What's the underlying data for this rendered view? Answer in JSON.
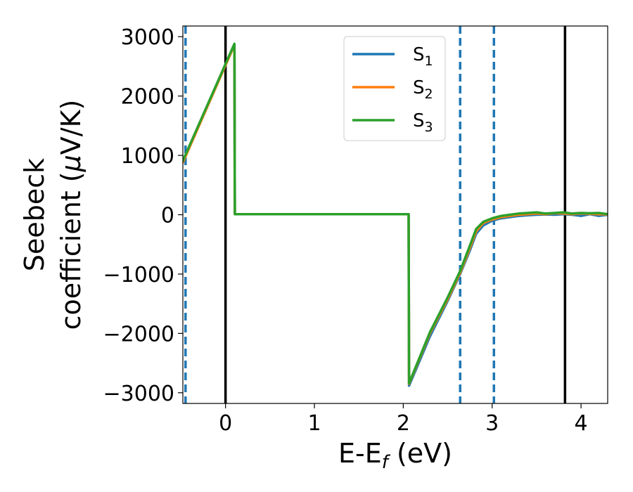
{
  "chart_data": {
    "type": "line",
    "xlabel": {
      "main": "E-E",
      "sub": "f",
      "tail": " (eV)"
    },
    "ylabel": {
      "line1": "Seebeck",
      "line2_pre": "coefficient  (",
      "mu": "μ",
      "line2_post": "V/K)"
    },
    "xlim": [
      -0.48,
      4.3
    ],
    "ylim": [
      -3180,
      3180
    ],
    "xticks": [
      0,
      1,
      2,
      3,
      4
    ],
    "yticks": [
      -3000,
      -2000,
      -1000,
      0,
      1000,
      2000,
      3000
    ],
    "xtick_labels": [
      "0",
      "1",
      "2",
      "3",
      "4"
    ],
    "ytick_labels": [
      "−3000",
      "−2000",
      "−1000",
      "0",
      "1000",
      "2000",
      "3000"
    ],
    "vlines_solid": [
      0,
      3.82
    ],
    "vlines_dashed": [
      -0.45,
      2.64,
      3.02
    ],
    "legend_position": "upper center-right",
    "series": [
      {
        "name": {
          "base": "S",
          "sub": "1"
        },
        "color": "#1f77b4",
        "x": [
          -0.48,
          0.1,
          0.105,
          2.06,
          2.065,
          2.3,
          2.5,
          2.64,
          2.75,
          2.82,
          2.9,
          3.0,
          3.1,
          3.2,
          3.3,
          3.4,
          3.5,
          3.6,
          3.7,
          3.8,
          3.9,
          4.0,
          4.1,
          4.2,
          4.3
        ],
        "y": [
          900,
          2870,
          10,
          10,
          -2880,
          -2050,
          -1450,
          -1000,
          -600,
          -320,
          -180,
          -100,
          -60,
          -40,
          -20,
          -10,
          0,
          5,
          0,
          10,
          0,
          -20,
          10,
          -20,
          0
        ]
      },
      {
        "name": {
          "base": "S",
          "sub": "2"
        },
        "color": "#ff7f0e",
        "x": [
          -0.48,
          0.1,
          0.105,
          2.06,
          2.065,
          2.3,
          2.5,
          2.64,
          2.75,
          2.82,
          2.9,
          3.0,
          3.1,
          3.2,
          3.3,
          3.4,
          3.5,
          3.6,
          3.7,
          3.8,
          3.9,
          4.0,
          4.1,
          4.2,
          4.3
        ],
        "y": [
          880,
          2860,
          10,
          10,
          -2850,
          -2000,
          -1420,
          -980,
          -560,
          -280,
          -140,
          -80,
          -40,
          -20,
          0,
          10,
          20,
          10,
          25,
          20,
          10,
          20,
          15,
          10,
          5
        ]
      },
      {
        "name": {
          "base": "S",
          "sub": "3"
        },
        "color": "#2ca02c",
        "x": [
          -0.48,
          0.1,
          0.105,
          2.06,
          2.065,
          2.3,
          2.5,
          2.64,
          2.75,
          2.82,
          2.9,
          3.0,
          3.1,
          3.2,
          3.3,
          3.4,
          3.5,
          3.6,
          3.7,
          3.8,
          3.9,
          4.0,
          4.1,
          4.2,
          4.3
        ],
        "y": [
          910,
          2880,
          10,
          10,
          -2840,
          -1980,
          -1390,
          -950,
          -520,
          -240,
          -120,
          -60,
          -20,
          0,
          20,
          30,
          40,
          20,
          30,
          40,
          20,
          30,
          25,
          30,
          10
        ]
      }
    ]
  }
}
